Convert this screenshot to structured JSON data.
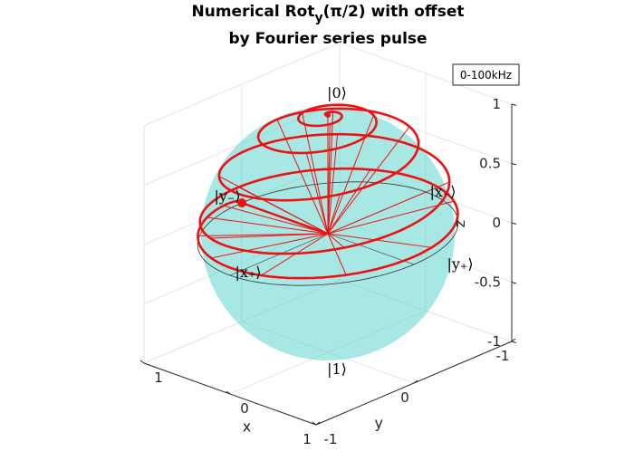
{
  "chart_data": {
    "type": "line",
    "title_line1_pre": "Numerical Rot",
    "title_sub": "y",
    "title_paren": "(π/2) with offset",
    "title_line2": "by Fourier series pulse",
    "xlabel": "x",
    "ylabel": "y",
    "zlabel": "z",
    "xlim": [
      -1,
      1
    ],
    "ylim": [
      -1,
      1
    ],
    "zlim": [
      -1,
      1
    ],
    "x_ticks": [
      "-1",
      "0",
      "1"
    ],
    "y_ticks": [
      "-1",
      "0",
      "1"
    ],
    "z_ticks": [
      "1",
      "0.5",
      "0",
      "-0.5",
      "-1"
    ],
    "legend": "0-100kHz",
    "legend_position": "top-right",
    "state_labels": {
      "zero": "|0⟩",
      "one": "|1⟩",
      "x_plus": "|x₊⟩",
      "x_minus": "|x₋⟩",
      "y_plus": "|y₊⟩",
      "y_minus": "|y₋⟩"
    },
    "colors": {
      "sphere": "#5fd4ce",
      "trajectory": "#ee1111",
      "grid": "#e6e6e6",
      "equator": "#333333"
    },
    "trajectory_description_values": {
      "start_point": [
        0,
        0,
        1
      ],
      "end_point": [
        1,
        0,
        0
      ]
    }
  }
}
